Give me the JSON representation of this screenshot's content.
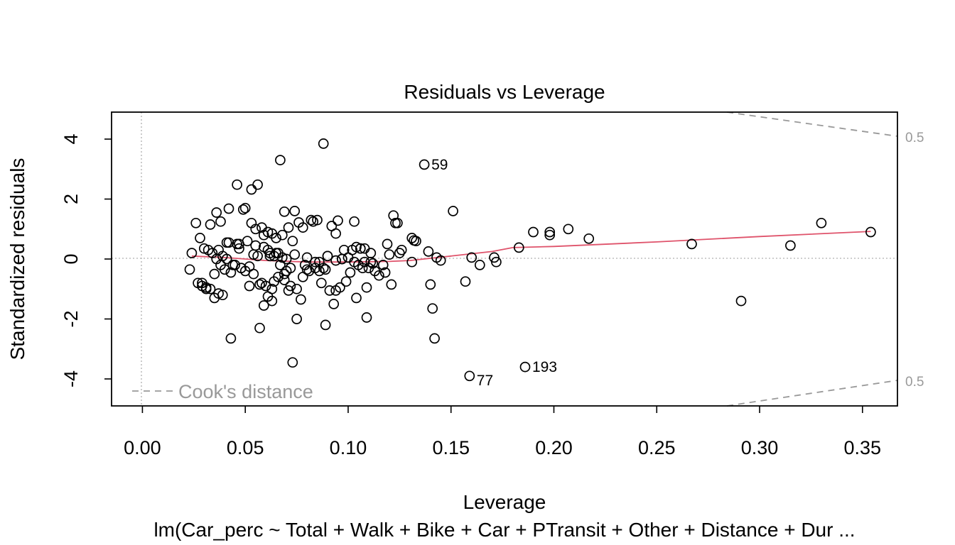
{
  "chart_data": {
    "type": "scatter",
    "title": "Residuals vs Leverage",
    "xlabel": "Leverage",
    "ylabel": "Standardized residuals",
    "subtitle": "lm(Car_perc ~ Total + Walk + Bike + Car + PTransit + Other + Distance + Dur ...",
    "xlim": [
      -0.015,
      0.367
    ],
    "ylim": [
      -4.9,
      4.9
    ],
    "x_ticks": [
      0.0,
      0.05,
      0.1,
      0.15,
      0.2,
      0.25,
      0.3,
      0.35
    ],
    "x_tick_labels": [
      "0.00",
      "0.05",
      "0.10",
      "0.15",
      "0.20",
      "0.25",
      "0.30",
      "0.35"
    ],
    "y_ticks": [
      -4,
      -2,
      0,
      2,
      4
    ],
    "y_tick_labels": [
      "-4",
      "-2",
      "0",
      "2",
      "4"
    ],
    "legend": {
      "label": "Cook's distance",
      "position": "bottom-left"
    },
    "cook_contour_label": "0.5",
    "cook_contour_labels": [
      "0.5",
      "0.5"
    ],
    "cook_contour_p": 9,
    "cook_levels": [
      0.5
    ],
    "colors": {
      "points": "#000000",
      "smooth": "#DF536B",
      "reference": "#BEBEBE",
      "cook": "#999999"
    },
    "labeled_points": [
      {
        "label": "59",
        "x": 0.137,
        "y": 3.15
      },
      {
        "label": "77",
        "x": 0.159,
        "y": -3.9
      },
      {
        "label": "193",
        "x": 0.186,
        "y": -3.6
      }
    ],
    "smooth": {
      "x": [
        0.024,
        0.04,
        0.06,
        0.08,
        0.1,
        0.12,
        0.13,
        0.15,
        0.17,
        0.18,
        0.2,
        0.25,
        0.3,
        0.354
      ],
      "y": [
        0.1,
        0.05,
        -0.05,
        -0.1,
        -0.1,
        -0.08,
        -0.05,
        0.1,
        0.25,
        0.38,
        0.42,
        0.57,
        0.75,
        0.92
      ]
    },
    "x": [
      0.088,
      0.067,
      0.046,
      0.056,
      0.053,
      0.042,
      0.049,
      0.069,
      0.074,
      0.053,
      0.058,
      0.063,
      0.061,
      0.055,
      0.059,
      0.051,
      0.065,
      0.071,
      0.068,
      0.073,
      0.076,
      0.078,
      0.082,
      0.083,
      0.085,
      0.092,
      0.095,
      0.094,
      0.098,
      0.103,
      0.104,
      0.108,
      0.111,
      0.119,
      0.122,
      0.124,
      0.123,
      0.131,
      0.132,
      0.126,
      0.12,
      0.117,
      0.108,
      0.106,
      0.105,
      0.113,
      0.102,
      0.097,
      0.09,
      0.088,
      0.086,
      0.08,
      0.072,
      0.07,
      0.066,
      0.064,
      0.06,
      0.057,
      0.054,
      0.05,
      0.048,
      0.045,
      0.043,
      0.04,
      0.038,
      0.036,
      0.034,
      0.032,
      0.03,
      0.028,
      0.026,
      0.024,
      0.023,
      0.029,
      0.031,
      0.033,
      0.035,
      0.037,
      0.039,
      0.041,
      0.044,
      0.047,
      0.052,
      0.058,
      0.061,
      0.063,
      0.067,
      0.069,
      0.072,
      0.075,
      0.078,
      0.081,
      0.084,
      0.087,
      0.089,
      0.091,
      0.093,
      0.096,
      0.099,
      0.101,
      0.104,
      0.107,
      0.109,
      0.112,
      0.115,
      0.118,
      0.121,
      0.125,
      0.131,
      0.133,
      0.139,
      0.14,
      0.141,
      0.142,
      0.145,
      0.143,
      0.151,
      0.157,
      0.16,
      0.164,
      0.171,
      0.172,
      0.183,
      0.19,
      0.198,
      0.198,
      0.207,
      0.217,
      0.267,
      0.291,
      0.315,
      0.33,
      0.354,
      0.137,
      0.159,
      0.186,
      0.027,
      0.029,
      0.033,
      0.036,
      0.038,
      0.042,
      0.046,
      0.05,
      0.055,
      0.059,
      0.062,
      0.066,
      0.07,
      0.074,
      0.079,
      0.084,
      0.09,
      0.094,
      0.1,
      0.106,
      0.11,
      0.043,
      0.057,
      0.073,
      0.075,
      0.089,
      0.109,
      0.094,
      0.071,
      0.077,
      0.059,
      0.063,
      0.069,
      0.048,
      0.052,
      0.035,
      0.031,
      0.039,
      0.064,
      0.08,
      0.086,
      0.097,
      0.103,
      0.111,
      0.056,
      0.061,
      0.065,
      0.068,
      0.054,
      0.047,
      0.037,
      0.041,
      0.062
    ],
    "y": [
      3.85,
      3.3,
      2.48,
      2.48,
      2.32,
      1.68,
      1.65,
      1.58,
      1.6,
      1.2,
      1.05,
      0.85,
      0.9,
      1.0,
      0.8,
      0.6,
      0.7,
      1.05,
      0.8,
      0.6,
      1.22,
      1.05,
      1.3,
      1.25,
      1.3,
      1.1,
      1.28,
      0.85,
      0.3,
      1.25,
      0.4,
      0.35,
      -0.1,
      0.5,
      1.45,
      1.2,
      1.2,
      0.7,
      0.62,
      0.3,
      0.15,
      -0.2,
      -0.1,
      0.35,
      -0.2,
      -0.4,
      0.3,
      0.0,
      0.1,
      -0.3,
      -0.4,
      -0.35,
      -0.3,
      -0.4,
      -0.6,
      -0.75,
      -0.9,
      -0.85,
      -0.5,
      -0.4,
      -0.3,
      -0.2,
      -0.45,
      -0.35,
      -0.2,
      0.0,
      0.2,
      0.3,
      0.35,
      0.7,
      1.2,
      0.2,
      -0.35,
      -0.8,
      -0.95,
      -1.0,
      -1.3,
      -1.15,
      0.1,
      0.0,
      -0.2,
      0.5,
      -0.9,
      -0.8,
      -1.25,
      -1.4,
      -0.2,
      -0.5,
      -0.9,
      -1.0,
      -0.6,
      -0.4,
      -0.3,
      -0.8,
      -0.35,
      -1.05,
      -1.5,
      -0.95,
      -0.75,
      -0.45,
      -1.3,
      -0.3,
      -0.95,
      -0.15,
      -0.55,
      -0.45,
      -0.85,
      0.2,
      -0.1,
      0.6,
      0.25,
      -0.85,
      -1.65,
      -2.65,
      -0.05,
      0.05,
      1.6,
      -0.75,
      0.05,
      -0.2,
      0.05,
      -0.1,
      0.38,
      0.9,
      0.9,
      0.8,
      1.0,
      0.68,
      0.5,
      -1.4,
      0.45,
      1.2,
      0.9,
      3.15,
      -3.9,
      -3.6,
      -0.8,
      -0.9,
      1.15,
      1.55,
      1.25,
      0.55,
      0.5,
      1.7,
      0.45,
      0.4,
      0.1,
      0.2,
      0.0,
      0.15,
      -0.2,
      -0.1,
      0.1,
      -0.05,
      0.05,
      0.35,
      -0.3,
      -2.65,
      -2.3,
      -3.45,
      -2.0,
      -2.2,
      -1.95,
      -1.05,
      -1.05,
      -1.35,
      -1.55,
      -1.0,
      -0.7,
      -0.3,
      -0.25,
      -0.5,
      -1.0,
      -1.2,
      0.1,
      0.05,
      -0.1,
      0.0,
      -0.1,
      0.2,
      0.1,
      0.3,
      0.2,
      0.05,
      0.15,
      0.35,
      0.3,
      0.55,
      0.2
    ]
  }
}
